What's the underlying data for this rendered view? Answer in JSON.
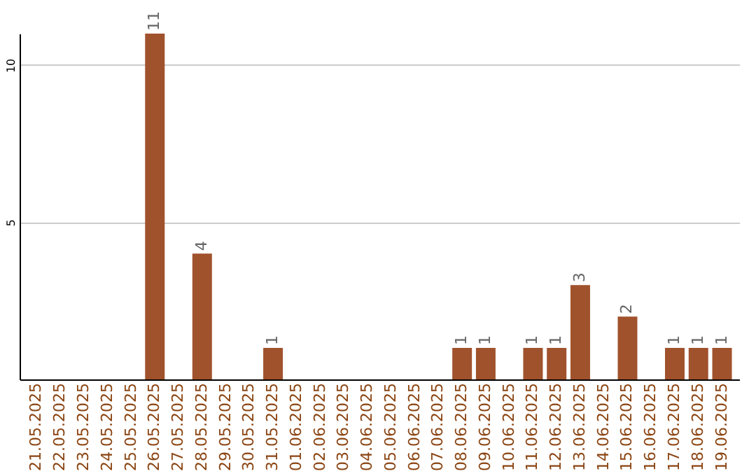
{
  "chart_data": {
    "type": "bar",
    "categories": [
      "21.05.2025",
      "22.05.2025",
      "23.05.2025",
      "24.05.2025",
      "25.05.2025",
      "26.05.2025",
      "27.05.2025",
      "28.05.2025",
      "29.05.2025",
      "30.05.2025",
      "31.05.2025",
      "01.06.2025",
      "02.06.2025",
      "03.06.2025",
      "04.06.2025",
      "05.06.2025",
      "06.06.2025",
      "07.06.2025",
      "08.06.2025",
      "09.06.2025",
      "10.06.2025",
      "11.06.2025",
      "12.06.2025",
      "13.06.2025",
      "14.06.2025",
      "15.06.2025",
      "16.06.2025",
      "17.06.2025",
      "18.06.2025",
      "19.06.2025"
    ],
    "values": [
      0,
      0,
      0,
      0,
      0,
      11,
      0,
      4,
      0,
      0,
      1,
      0,
      0,
      0,
      0,
      0,
      0,
      0,
      1,
      1,
      0,
      1,
      1,
      3,
      0,
      2,
      0,
      1,
      1,
      1
    ],
    "value_labels": [
      null,
      null,
      null,
      null,
      null,
      "11",
      null,
      "4",
      null,
      null,
      "1",
      null,
      null,
      null,
      null,
      null,
      null,
      null,
      "1",
      "1",
      null,
      "1",
      "1",
      "3",
      null,
      "2",
      null,
      "1",
      "1",
      "1"
    ],
    "color": "#a0522d",
    "ylim": [
      0,
      11
    ],
    "yticks": [
      5,
      10
    ],
    "grid": "y"
  }
}
